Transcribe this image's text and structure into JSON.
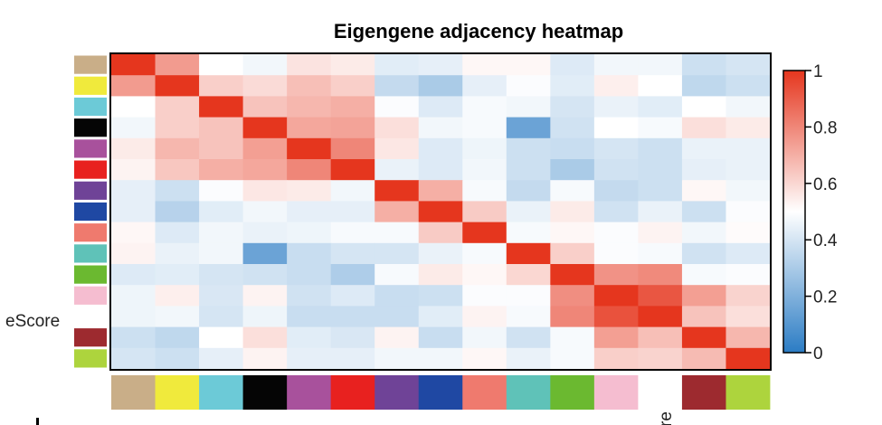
{
  "chart_data": {
    "type": "heatmap",
    "title": "Eigengene adjacency heatmap",
    "module_colors": [
      "#c9ae88",
      "#f0ea3c",
      "#6ccad7",
      "#050505",
      "#a8519c",
      "#e8211f",
      "#6f4397",
      "#1f48a3",
      "#ef7a6e",
      "#5fc2b8",
      "#6bb930",
      "#f5bdd0",
      "#ffffff",
      "#9d2a2f",
      "#add43d"
    ],
    "row_label_fragment": "eScore",
    "col_label_fragment": "re",
    "colorbar": {
      "min": 0,
      "max": 1,
      "ticks": [
        "0",
        "0.2",
        "0.4",
        "0.6",
        "0.8",
        "1"
      ]
    },
    "matrix": [
      [
        1.0,
        0.75,
        0.5,
        0.47,
        0.57,
        0.55,
        0.43,
        0.44,
        0.52,
        0.52,
        0.42,
        0.47,
        0.47,
        0.38,
        0.4
      ],
      [
        0.75,
        1.0,
        0.62,
        0.59,
        0.66,
        0.62,
        0.36,
        0.3,
        0.44,
        0.49,
        0.43,
        0.54,
        0.5,
        0.35,
        0.38
      ],
      [
        0.5,
        0.62,
        1.0,
        0.65,
        0.68,
        0.7,
        0.49,
        0.42,
        0.48,
        0.47,
        0.4,
        0.45,
        0.43,
        0.5,
        0.47
      ],
      [
        0.47,
        0.62,
        0.65,
        1.0,
        0.72,
        0.73,
        0.58,
        0.47,
        0.48,
        0.15,
        0.39,
        0.5,
        0.48,
        0.58,
        0.55
      ],
      [
        0.55,
        0.68,
        0.65,
        0.74,
        1.0,
        0.8,
        0.56,
        0.42,
        0.46,
        0.38,
        0.37,
        0.4,
        0.38,
        0.45,
        0.45
      ],
      [
        0.53,
        0.64,
        0.7,
        0.72,
        0.8,
        1.0,
        0.45,
        0.42,
        0.47,
        0.38,
        0.3,
        0.39,
        0.38,
        0.44,
        0.45
      ],
      [
        0.44,
        0.38,
        0.49,
        0.56,
        0.55,
        0.47,
        1.0,
        0.7,
        0.48,
        0.36,
        0.48,
        0.36,
        0.38,
        0.52,
        0.47
      ],
      [
        0.44,
        0.33,
        0.43,
        0.47,
        0.44,
        0.44,
        0.7,
        1.0,
        0.63,
        0.45,
        0.55,
        0.39,
        0.45,
        0.38,
        0.49
      ],
      [
        0.52,
        0.42,
        0.47,
        0.45,
        0.46,
        0.48,
        0.48,
        0.63,
        1.0,
        0.48,
        0.52,
        0.49,
        0.53,
        0.47,
        0.51
      ],
      [
        0.53,
        0.45,
        0.47,
        0.15,
        0.37,
        0.4,
        0.4,
        0.45,
        0.48,
        1.0,
        0.62,
        0.49,
        0.48,
        0.39,
        0.42
      ],
      [
        0.42,
        0.43,
        0.4,
        0.39,
        0.37,
        0.31,
        0.48,
        0.55,
        0.52,
        0.6,
        1.0,
        0.77,
        0.79,
        0.48,
        0.49
      ],
      [
        0.46,
        0.54,
        0.41,
        0.53,
        0.39,
        0.42,
        0.37,
        0.38,
        0.49,
        0.49,
        0.78,
        1.0,
        0.92,
        0.74,
        0.61
      ],
      [
        0.46,
        0.47,
        0.4,
        0.46,
        0.37,
        0.37,
        0.37,
        0.43,
        0.53,
        0.48,
        0.8,
        0.93,
        1.0,
        0.65,
        0.58
      ],
      [
        0.38,
        0.35,
        0.5,
        0.58,
        0.43,
        0.41,
        0.53,
        0.37,
        0.47,
        0.39,
        0.48,
        0.74,
        0.66,
        1.0,
        0.68
      ],
      [
        0.4,
        0.38,
        0.44,
        0.53,
        0.44,
        0.44,
        0.47,
        0.47,
        0.52,
        0.45,
        0.48,
        0.62,
        0.61,
        0.67,
        1.0
      ]
    ]
  }
}
